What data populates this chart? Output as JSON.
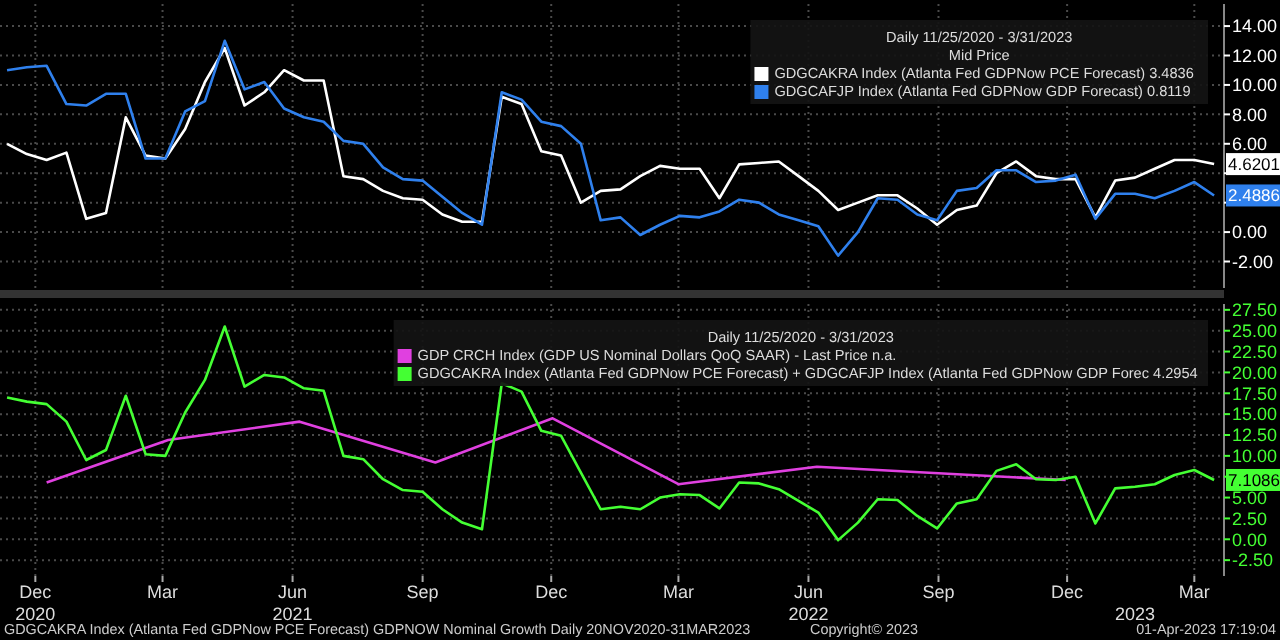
{
  "chart_data": [
    {
      "type": "line",
      "legend_title": "Daily 11/25/2020 - 3/31/2023\nMid Price",
      "legend": "top right",
      "grid": true,
      "tick_labels": "y",
      "xlim": [
        "2020-11-20",
        "2023-04-05"
      ],
      "ylim": [
        -3.8,
        15.5
      ],
      "xticks": [
        {
          "value": "2020-12-15",
          "label": null
        },
        {
          "value": "2021-03-15",
          "label": null
        },
        {
          "value": "2021-06-15",
          "label": null
        },
        {
          "value": "2021-09-15",
          "label": null
        },
        {
          "value": "2021-12-15",
          "label": null
        },
        {
          "value": "2022-03-15",
          "label": null
        },
        {
          "value": "2022-06-15",
          "label": null
        },
        {
          "value": "2022-09-15",
          "label": null
        },
        {
          "value": "2022-12-15",
          "label": null
        },
        {
          "value": "2023-03-15",
          "label": null
        }
      ],
      "yticks": [
        {
          "value": -2,
          "label": "-2.00"
        },
        {
          "value": 0,
          "label": "0.00"
        },
        {
          "value": 2,
          "label": null
        },
        {
          "value": 4,
          "label": null
        },
        {
          "value": 6,
          "label": "6.00"
        },
        {
          "value": 8,
          "label": "8.00"
        },
        {
          "value": 10,
          "label": "10.00"
        },
        {
          "value": 12,
          "label": "12.00"
        },
        {
          "value": 14,
          "label": "14.00"
        }
      ],
      "x": [
        "2020-11-25",
        "2020-12-09",
        "2020-12-23",
        "2021-01-06",
        "2021-01-20",
        "2021-02-03",
        "2021-02-17",
        "2021-03-03",
        "2021-03-17",
        "2021-03-31",
        "2021-04-14",
        "2021-04-28",
        "2021-05-12",
        "2021-05-26",
        "2021-06-09",
        "2021-06-23",
        "2021-07-07",
        "2021-07-21",
        "2021-08-04",
        "2021-08-18",
        "2021-09-01",
        "2021-09-15",
        "2021-09-29",
        "2021-10-13",
        "2021-10-27",
        "2021-11-10",
        "2021-11-24",
        "2021-12-08",
        "2021-12-22",
        "2022-01-05",
        "2022-01-19",
        "2022-02-02",
        "2022-02-16",
        "2022-03-02",
        "2022-03-16",
        "2022-03-30",
        "2022-04-13",
        "2022-04-27",
        "2022-05-11",
        "2022-05-25",
        "2022-06-08",
        "2022-06-22",
        "2022-07-06",
        "2022-07-20",
        "2022-08-03",
        "2022-08-17",
        "2022-08-31",
        "2022-09-14",
        "2022-09-28",
        "2022-10-12",
        "2022-10-26",
        "2022-11-09",
        "2022-11-23",
        "2022-12-07",
        "2022-12-21",
        "2023-01-04",
        "2023-01-18",
        "2023-02-01",
        "2023-02-15",
        "2023-03-01",
        "2023-03-15",
        "2023-03-29"
      ],
      "series": [
        {
          "name": "GDGCAKRA Index (Atlanta Fed GDPNow PCE Forecast) 3.4836",
          "color": "#ffffff",
          "values": [
            6.0,
            5.3,
            4.9,
            5.4,
            0.9,
            1.3,
            7.8,
            5.2,
            5.0,
            7.0,
            10.2,
            12.5,
            8.6,
            9.5,
            11.0,
            10.3,
            10.3,
            3.8,
            3.6,
            2.8,
            2.3,
            2.2,
            1.2,
            0.7,
            0.7,
            9.2,
            8.7,
            5.5,
            5.2,
            2.0,
            2.8,
            2.9,
            3.8,
            4.5,
            4.3,
            4.3,
            2.3,
            4.6,
            4.7,
            4.8,
            3.8,
            2.8,
            1.5,
            2.0,
            2.5,
            2.5,
            1.6,
            0.5,
            1.5,
            1.8,
            4.0,
            4.8,
            3.8,
            3.6,
            3.6,
            1.0,
            3.5,
            3.7,
            4.3,
            4.9,
            4.9,
            4.6201
          ],
          "value_labels": [
            null,
            null,
            null,
            null,
            null,
            null,
            null,
            null,
            null,
            null,
            null,
            null,
            null,
            null,
            null,
            null,
            null,
            null,
            null,
            null,
            null,
            null,
            null,
            null,
            null,
            null,
            null,
            null,
            null,
            null,
            null,
            null,
            null,
            null,
            null,
            null,
            null,
            null,
            null,
            null,
            null,
            null,
            null,
            null,
            null,
            null,
            null,
            null,
            null,
            null,
            null,
            null,
            null,
            null,
            null,
            null,
            null,
            null,
            null,
            null,
            null,
            "4.6201"
          ]
        },
        {
          "name": "GDGCAFJP Index (Atlanta Fed GDPNow GDP Forecast) 0.8119",
          "color": "#2f80ed",
          "values": [
            11.0,
            11.2,
            11.3,
            8.7,
            8.6,
            9.4,
            9.4,
            5.0,
            5.0,
            8.2,
            8.9,
            13.0,
            9.7,
            10.2,
            8.4,
            7.8,
            7.5,
            6.2,
            6.0,
            4.4,
            3.6,
            3.5,
            2.4,
            1.3,
            0.5,
            9.5,
            9.0,
            7.5,
            7.2,
            6.0,
            0.8,
            1.0,
            -0.2,
            0.5,
            1.1,
            1.0,
            1.4,
            2.2,
            2.0,
            1.2,
            0.8,
            0.4,
            -1.6,
            0.0,
            2.3,
            2.2,
            1.2,
            0.8,
            2.8,
            3.0,
            4.2,
            4.2,
            3.4,
            3.5,
            3.9,
            0.9,
            2.6,
            2.6,
            2.3,
            2.8,
            3.4,
            2.4886
          ],
          "value_labels": [
            null,
            null,
            null,
            null,
            null,
            null,
            null,
            null,
            null,
            null,
            null,
            null,
            null,
            null,
            null,
            null,
            null,
            null,
            null,
            null,
            null,
            null,
            null,
            null,
            null,
            null,
            null,
            null,
            null,
            null,
            null,
            null,
            null,
            null,
            null,
            null,
            null,
            null,
            null,
            null,
            null,
            null,
            null,
            null,
            null,
            null,
            null,
            null,
            null,
            null,
            null,
            null,
            null,
            null,
            null,
            null,
            null,
            null,
            null,
            null,
            null,
            "2.4886"
          ]
        }
      ]
    },
    {
      "type": "line",
      "legend_title": "Daily 11/25/2020 - 3/31/2023",
      "legend": "top right",
      "grid": true,
      "xlim": [
        "2020-11-20",
        "2023-04-05"
      ],
      "ylim": [
        -4.4,
        28.2
      ],
      "xticks": [
        {
          "value": "2020-12-15",
          "label": "Dec"
        },
        {
          "value": "2021-03-15",
          "label": "Mar"
        },
        {
          "value": "2021-06-15",
          "label": "Jun"
        },
        {
          "value": "2021-09-15",
          "label": "Sep"
        },
        {
          "value": "2021-12-15",
          "label": "Dec"
        },
        {
          "value": "2022-03-15",
          "label": "Mar"
        },
        {
          "value": "2022-06-15",
          "label": "Jun"
        },
        {
          "value": "2022-09-15",
          "label": "Sep"
        },
        {
          "value": "2022-12-15",
          "label": "Dec"
        },
        {
          "value": "2023-03-15",
          "label": "Mar"
        }
      ],
      "x2lim": [
        "2020-11-20",
        "2023-04-05"
      ],
      "x2ticks": [
        {
          "value": "2020-12-15",
          "label": "2020"
        },
        {
          "value": "2021-06-15",
          "label": "2021"
        },
        {
          "value": "2022-06-15",
          "label": "2022"
        },
        {
          "value": "2023-02-01",
          "label": "2023"
        }
      ],
      "yticks": [
        {
          "value": -2.5,
          "label": "-2.50"
        },
        {
          "value": 0,
          "label": "0.00"
        },
        {
          "value": 2.5,
          "label": "2.50"
        },
        {
          "value": 5,
          "label": "5.00"
        },
        {
          "value": 7.5,
          "label": null
        },
        {
          "value": 10,
          "label": "10.00"
        },
        {
          "value": 12.5,
          "label": "12.50"
        },
        {
          "value": 15,
          "label": "15.00"
        },
        {
          "value": 17.5,
          "label": "17.50"
        },
        {
          "value": 20,
          "label": "20.00"
        },
        {
          "value": 22.5,
          "label": "22.50"
        },
        {
          "value": 25,
          "label": "25.00"
        },
        {
          "value": 27.5,
          "label": "27.50"
        }
      ],
      "x": [
        "2020-11-25",
        "2020-12-09",
        "2020-12-23",
        "2021-01-06",
        "2021-01-20",
        "2021-02-03",
        "2021-02-17",
        "2021-03-03",
        "2021-03-17",
        "2021-03-31",
        "2021-04-14",
        "2021-04-28",
        "2021-05-12",
        "2021-05-26",
        "2021-06-09",
        "2021-06-23",
        "2021-07-07",
        "2021-07-21",
        "2021-08-04",
        "2021-08-18",
        "2021-09-01",
        "2021-09-15",
        "2021-09-29",
        "2021-10-13",
        "2021-10-27",
        "2021-11-10",
        "2021-11-24",
        "2021-12-08",
        "2021-12-22",
        "2022-01-05",
        "2022-01-19",
        "2022-02-02",
        "2022-02-16",
        "2022-03-02",
        "2022-03-16",
        "2022-03-30",
        "2022-04-13",
        "2022-04-27",
        "2022-05-11",
        "2022-05-25",
        "2022-06-08",
        "2022-06-22",
        "2022-07-06",
        "2022-07-20",
        "2022-08-03",
        "2022-08-17",
        "2022-08-31",
        "2022-09-14",
        "2022-09-28",
        "2022-10-12",
        "2022-10-26",
        "2022-11-09",
        "2022-11-23",
        "2022-12-07",
        "2022-12-21",
        "2023-01-04",
        "2023-01-18",
        "2023-02-01",
        "2023-02-15",
        "2023-03-01",
        "2023-03-15",
        "2023-03-29"
      ],
      "series": [
        {
          "name": "GDP CRCH Index (GDP US Nominal Dollars QoQ SAAR) - Last Price n.a.",
          "color": "#e040e0",
          "x": [
            "2020-12-23",
            "2021-03-19",
            "2021-06-20",
            "2021-09-24",
            "2021-12-16",
            "2022-03-15",
            "2022-06-21",
            "2022-12-14"
          ],
          "values": [
            6.8,
            11.9,
            14.1,
            9.2,
            14.5,
            6.6,
            8.7,
            7.1
          ]
        },
        {
          "name": "GDGCAKRA Index (Atlanta Fed GDPNow PCE Forecast) + GDGCAFJP Index (Atlanta Fed GDPNow GDP Forec 4.2954",
          "color": "#44ff33",
          "values": [
            17.0,
            16.5,
            16.2,
            14.1,
            9.5,
            10.7,
            17.2,
            10.2,
            10.0,
            15.2,
            19.1,
            25.5,
            18.3,
            19.7,
            19.4,
            18.1,
            17.8,
            10.0,
            9.6,
            7.2,
            5.9,
            5.7,
            3.6,
            2.0,
            1.2,
            18.7,
            17.7,
            13.0,
            12.4,
            8.0,
            3.6,
            3.9,
            3.6,
            5.0,
            5.4,
            5.3,
            3.7,
            6.8,
            6.7,
            6.0,
            4.6,
            3.2,
            -0.1,
            2.0,
            4.8,
            4.7,
            2.8,
            1.3,
            4.3,
            4.8,
            8.2,
            9.0,
            7.2,
            7.1,
            7.5,
            1.9,
            6.1,
            6.3,
            6.6,
            7.7,
            8.3,
            7.1086
          ],
          "value_labels": [
            null,
            null,
            null,
            null,
            null,
            null,
            null,
            null,
            null,
            null,
            null,
            null,
            null,
            null,
            null,
            null,
            null,
            null,
            null,
            null,
            null,
            null,
            null,
            null,
            null,
            null,
            null,
            null,
            null,
            null,
            null,
            null,
            null,
            null,
            null,
            null,
            null,
            null,
            null,
            null,
            null,
            null,
            null,
            null,
            null,
            null,
            null,
            null,
            null,
            null,
            null,
            null,
            null,
            null,
            null,
            null,
            null,
            null,
            null,
            null,
            null,
            "7.1086"
          ]
        }
      ],
      "annotations": [
        "GDGCAKRA Index (Atlanta Fed GDPNow PCE Forecast) GDPNOW Nominal Growth  Daily 20NOV2020-31MAR2023",
        "Copyright© 2023",
        "01-Apr-2023 17:19:04"
      ]
    }
  ]
}
